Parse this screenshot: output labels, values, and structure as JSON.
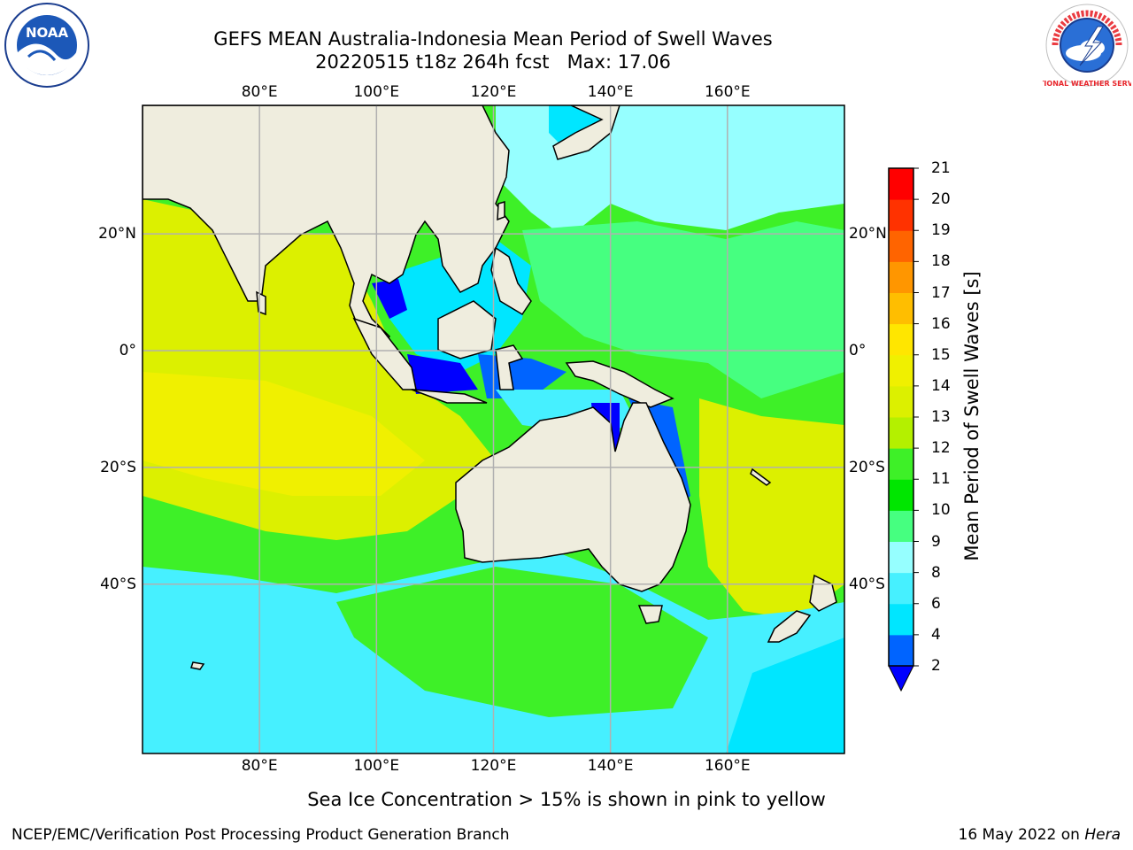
{
  "title": {
    "line1": "GEFS MEAN Australia-Indonesia Mean Period of Swell Waves",
    "line2": "20220515 t18z 264h fcst   Max: 17.06"
  },
  "logos": {
    "left": "NOAA",
    "right": "NATIONAL WEATHER SERVICE"
  },
  "map": {
    "lon_range": [
      60,
      180
    ],
    "lat_range": [
      -69,
      42
    ],
    "lon_ticks": [
      {
        "value": 80,
        "label": "80°E"
      },
      {
        "value": 100,
        "label": "100°E"
      },
      {
        "value": 120,
        "label": "120°E"
      },
      {
        "value": 140,
        "label": "140°E"
      },
      {
        "value": 160,
        "label": "160°E"
      }
    ],
    "lat_ticks": [
      {
        "value": 20,
        "label": "20°N"
      },
      {
        "value": 0,
        "label": "0°"
      },
      {
        "value": -20,
        "label": "20°S"
      },
      {
        "value": -40,
        "label": "40°S"
      }
    ],
    "grid": true,
    "land_color": "#efedde",
    "grid_color": "#b0b0b0"
  },
  "colorbar": {
    "title": "Mean Period of Swell Waves [s]",
    "levels": [
      "2",
      "4",
      "6",
      "8",
      "9",
      "10",
      "11",
      "12",
      "13",
      "14",
      "15",
      "16",
      "17",
      "18",
      "19",
      "20",
      "21"
    ],
    "colors": [
      "#0064ff",
      "#00e6ff",
      "#46f0ff",
      "#96ffff",
      "#46ff80",
      "#00e600",
      "#3ef028",
      "#b4f000",
      "#dcf000",
      "#f0f000",
      "#ffe600",
      "#ffbe00",
      "#ff9600",
      "#ff6400",
      "#ff3200",
      "#ff0000"
    ],
    "under_color": "#0000ff"
  },
  "footer": {
    "sea_ice_note": "Sea Ice Concentration > 15% is shown in pink to yellow",
    "left": "NCEP/EMC/Verification Post Processing Product Generation Branch",
    "right_date": "16 May 2022 on",
    "right_machine": "Hera"
  }
}
